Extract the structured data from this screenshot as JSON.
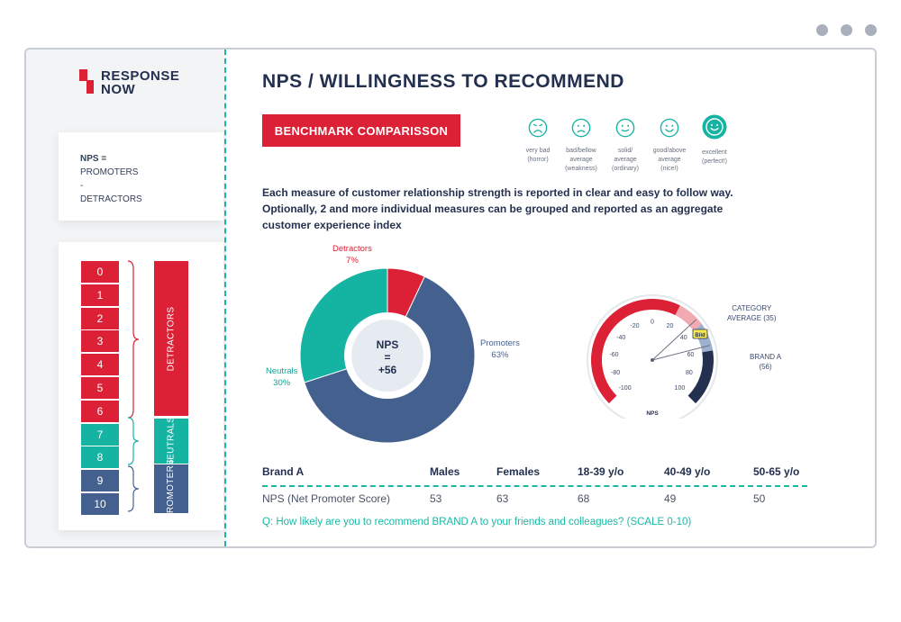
{
  "window": {
    "dots": [
      "dot",
      "dot",
      "dot"
    ]
  },
  "logo": {
    "line1": "RESPONSE",
    "line2": "NOW",
    "brand_color": "#dc2036"
  },
  "formula": {
    "line1": "NPS =",
    "line2": "PROMOTERS",
    "line3": "-",
    "line4": "DETRACTORS"
  },
  "scale": {
    "scores": [
      "0",
      "1",
      "2",
      "3",
      "4",
      "5",
      "6",
      "7",
      "8",
      "9",
      "10"
    ],
    "categories": [
      "DETRACTORS",
      "NEUTRALS",
      "PROMOTERS"
    ],
    "colors": {
      "detractors": "#dc2036",
      "neutrals": "#14b3a2",
      "promoters": "#44608f"
    }
  },
  "header": {
    "title": "NPS / WILLINGNESS TO RECOMMEND",
    "benchmark_button": "BENCHMARK COMPARISSON"
  },
  "ratings": [
    {
      "icon": "frown-face-icon",
      "line1": "very bad",
      "line2": "(horror)",
      "line3": ""
    },
    {
      "icon": "sad-face-icon",
      "line1": "bad/bellow",
      "line2": "average",
      "line3": "(weakness)"
    },
    {
      "icon": "neutral-face-icon",
      "line1": "solid/",
      "line2": "average",
      "line3": "(ordinary)"
    },
    {
      "icon": "smile-face-icon",
      "line1": "good/above",
      "line2": "average",
      "line3": "(nice!)"
    },
    {
      "icon": "happy-face-icon",
      "line1": "excellent",
      "line2": "(perfect!)",
      "line3": ""
    }
  ],
  "description": {
    "line1": "Each measure of customer relationship strength is reported in clear and easy to follow way.",
    "line2": "Optionally, 2 and more individual measures can be grouped and reported as an aggregate",
    "line3": "customer experience index"
  },
  "chart_data": [
    {
      "type": "pie",
      "subtype": "donut",
      "slices": [
        {
          "name": "Detractors",
          "value": 7,
          "label": "7%",
          "color": "#dc2036"
        },
        {
          "name": "Promoters",
          "value": 63,
          "label": "63%",
          "color": "#44608f"
        },
        {
          "name": "Neutrals",
          "value": 30,
          "label": "30%",
          "color": "#14b3a2"
        }
      ],
      "center_label": {
        "line1": "NPS",
        "line2": "=",
        "line3": "+56"
      }
    },
    {
      "type": "gauge",
      "title": "NPS",
      "min": -100,
      "max": 100,
      "ticks": [
        "-100",
        "-80",
        "-60",
        "-40",
        "-20",
        "0",
        "20",
        "40",
        "60",
        "80",
        "100"
      ],
      "bands": [
        {
          "from": -100,
          "to": 20,
          "color": "#dc2036"
        },
        {
          "from": 20,
          "to": 40,
          "color": "#f1a9b2"
        },
        {
          "from": 40,
          "to": 60,
          "color": "#9eb2cf"
        },
        {
          "from": 60,
          "to": 100,
          "color": "#24304f"
        }
      ],
      "markers": [
        {
          "name": "CATEGORY AVERAGE",
          "value": 35,
          "label_line1": "CATEGORY",
          "label_line2": "AVERAGE (35)"
        },
        {
          "name": "BRAND A",
          "value": 56,
          "label_line1": "BRAND A",
          "label_line2": "(56)"
        }
      ],
      "badge": "Bild"
    }
  ],
  "table": {
    "headers": [
      "Brand A",
      "Males",
      "Females",
      "18-39 y/o",
      "40-49 y/o",
      "50-65 y/o"
    ],
    "rows": [
      {
        "label": "NPS (Net Promoter Score)",
        "values": [
          "53",
          "63",
          "68",
          "49",
          "50"
        ]
      }
    ]
  },
  "question": "Q: How likely are you to recommend BRAND A to your friends and colleagues? (SCALE 0-10)"
}
